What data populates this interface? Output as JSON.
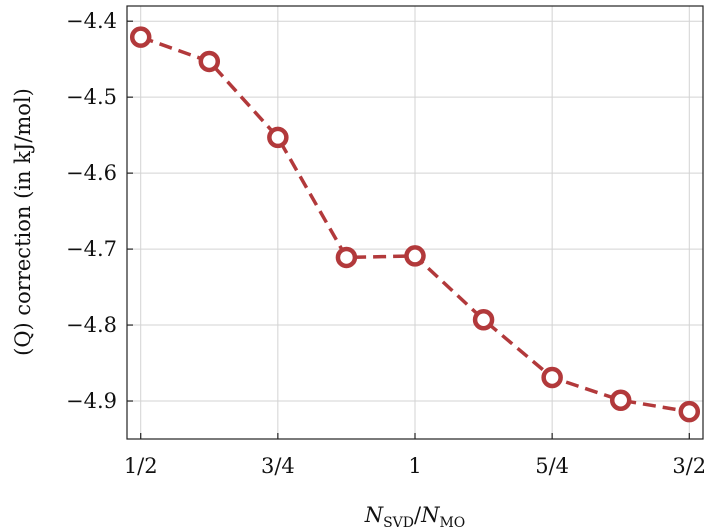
{
  "chart_data": {
    "type": "line",
    "title": "",
    "ylabel": "(Q) correction (in kJ/mol)",
    "xlabel": {
      "main1": "N",
      "sub1": "SVD",
      "sep": "/",
      "main2": "N",
      "sub2": "MO"
    },
    "x_ticks": [
      {
        "value": 0.5,
        "label": "1/2"
      },
      {
        "value": 0.75,
        "label": "3/4"
      },
      {
        "value": 1.0,
        "label": "1"
      },
      {
        "value": 1.25,
        "label": "5/4"
      },
      {
        "value": 1.5,
        "label": "3/2"
      }
    ],
    "y_ticks": [
      {
        "value": -4.4,
        "label": "−4.4"
      },
      {
        "value": -4.5,
        "label": "−4.5"
      },
      {
        "value": -4.6,
        "label": "−4.6"
      },
      {
        "value": -4.7,
        "label": "−4.7"
      },
      {
        "value": -4.8,
        "label": "−4.8"
      },
      {
        "value": -4.9,
        "label": "−4.9"
      }
    ],
    "xlim": [
      0.475,
      1.525
    ],
    "ylim": [
      -4.95,
      -4.38
    ],
    "grid": true,
    "series": [
      {
        "color": "#b2393b",
        "style": "dashed",
        "marker": "open-circle",
        "x": [
          0.5,
          0.625,
          0.75,
          0.875,
          1.0,
          1.125,
          1.25,
          1.375,
          1.5
        ],
        "y": [
          -4.421,
          -4.453,
          -4.553,
          -4.711,
          -4.709,
          -4.793,
          -4.869,
          -4.899,
          -4.914
        ]
      }
    ]
  }
}
